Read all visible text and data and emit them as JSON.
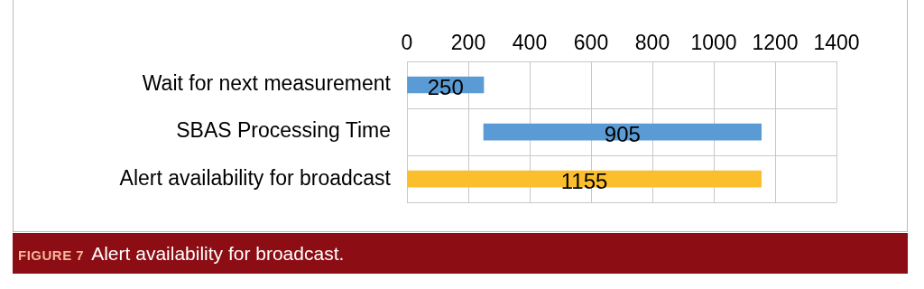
{
  "chart_data": {
    "type": "bar",
    "orientation": "horizontal",
    "categories": [
      "Wait for next measurement",
      "SBAS Processing Time",
      "Alert availability for broadcast"
    ],
    "values": [
      250,
      905,
      1155
    ],
    "base": [
      0,
      250,
      0
    ],
    "colors": [
      "#5b9bd5",
      "#5b9bd5",
      "#fbbf2d"
    ],
    "xlim": [
      0,
      1400
    ],
    "xticks": [
      0,
      200,
      400,
      600,
      800,
      1000,
      1200,
      1400
    ],
    "grid": true,
    "data_labels": true,
    "legend": false,
    "annotations": [
      "FIGURE 7",
      "Alert availability for broadcast."
    ]
  }
}
